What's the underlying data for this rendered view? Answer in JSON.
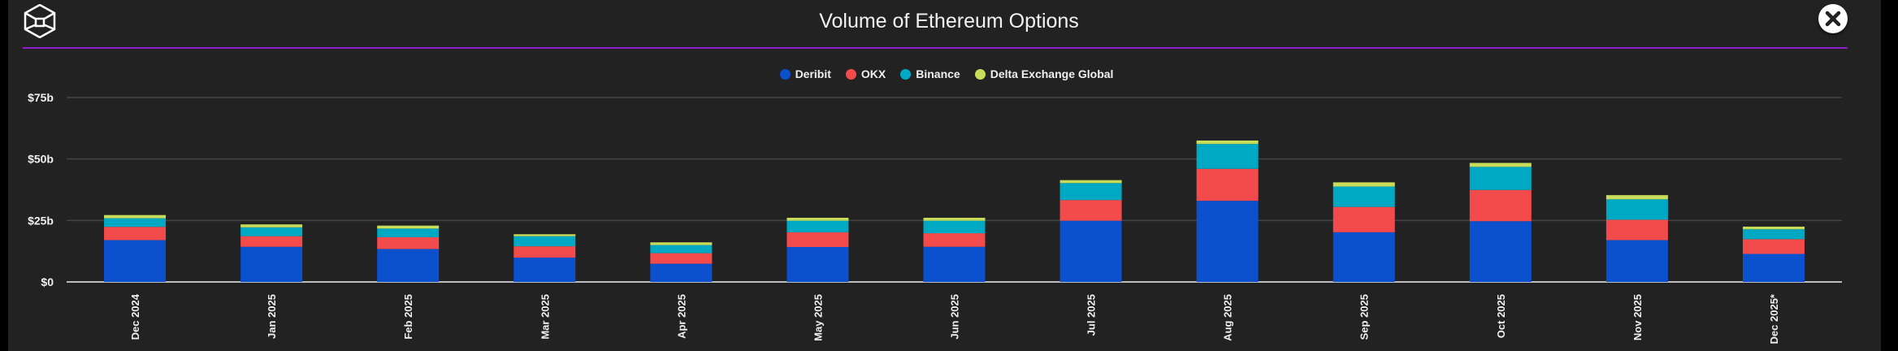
{
  "header": {
    "title": "Volume of Ethereum Options",
    "logo_icon": "cube-logo-icon",
    "close_icon": "close-icon",
    "accent_color": "#8e1ec9"
  },
  "chart_data": {
    "type": "bar",
    "stacked": true,
    "title": "Volume of Ethereum Options",
    "xlabel": "",
    "ylabel": "",
    "ylim": [
      0,
      75
    ],
    "yunit": "USD billions",
    "yticks": [
      0,
      25,
      50,
      75
    ],
    "ytick_labels": [
      "$0",
      "$25b",
      "$50b",
      "$75b"
    ],
    "grid": true,
    "legend_position": "top-center",
    "categories": [
      "Dec 2024",
      "Jan 2025",
      "Feb 2025",
      "Mar 2025",
      "Apr 2025",
      "May 2025",
      "Jun 2025",
      "Jul 2025",
      "Aug 2025",
      "Sep 2025",
      "Oct 2025",
      "Nov 2025",
      "Dec 2025*"
    ],
    "series": [
      {
        "name": "Deribit",
        "color": "#0b50cc",
        "values": [
          17.0,
          14.3,
          13.4,
          9.9,
          7.4,
          14.2,
          14.3,
          24.9,
          33.0,
          20.2,
          24.7,
          17.0,
          11.4
        ]
      },
      {
        "name": "OKX",
        "color": "#f34b4b",
        "values": [
          5.4,
          4.3,
          4.8,
          4.6,
          4.3,
          6.0,
          5.5,
          8.4,
          13.0,
          10.3,
          12.7,
          8.3,
          6.0
        ]
      },
      {
        "name": "Binance",
        "color": "#00a9c3",
        "values": [
          3.5,
          3.6,
          3.5,
          4.1,
          3.3,
          4.7,
          5.1,
          6.9,
          10.1,
          8.3,
          9.4,
          8.3,
          4.0
        ]
      },
      {
        "name": "Delta Exchange Global",
        "color": "#c8dc5a",
        "values": [
          1.3,
          1.2,
          1.2,
          0.8,
          1.1,
          1.2,
          1.2,
          1.2,
          1.4,
          1.7,
          1.6,
          1.7,
          1.1
        ]
      }
    ]
  }
}
